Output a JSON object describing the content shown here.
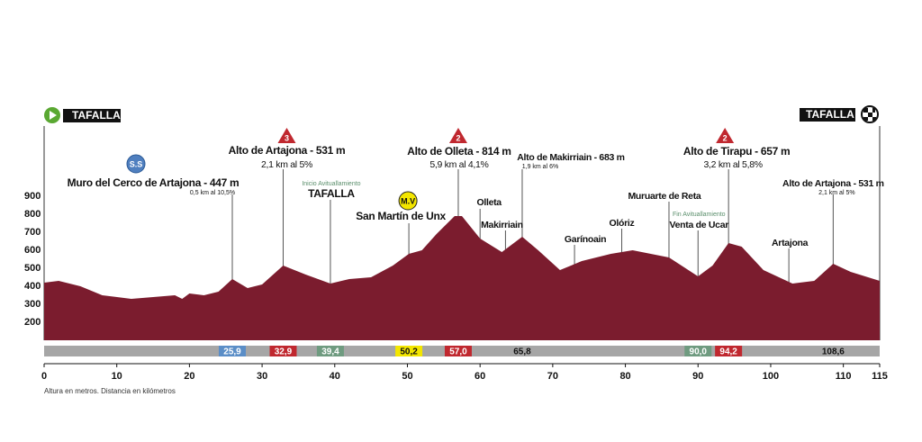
{
  "chart_data": {
    "type": "area",
    "color": "#7b1c2e",
    "xlim": [
      0,
      115
    ],
    "ylim": [
      100,
      900
    ],
    "xticks": [
      0,
      10,
      20,
      30,
      40,
      50,
      60,
      70,
      80,
      90,
      100,
      110,
      115
    ],
    "yticks": [
      200,
      300,
      400,
      500,
      600,
      700,
      800,
      900
    ],
    "x": [
      0,
      2,
      5,
      8,
      12,
      15,
      18,
      19,
      20,
      22,
      24,
      25.9,
      28,
      30,
      32.9,
      36,
      39.4,
      42,
      45,
      48,
      50.2,
      52,
      54,
      56.5,
      57.5,
      60,
      63,
      65.8,
      68,
      71,
      74,
      78,
      81,
      86,
      90,
      92,
      94.2,
      96,
      99,
      103,
      106,
      108.6,
      111,
      115
    ],
    "values": [
      420,
      430,
      400,
      350,
      330,
      340,
      350,
      330,
      360,
      350,
      370,
      440,
      390,
      410,
      515,
      465,
      415,
      440,
      450,
      515,
      580,
      600,
      690,
      790,
      790,
      665,
      590,
      675,
      600,
      490,
      540,
      580,
      600,
      560,
      455,
      515,
      640,
      620,
      490,
      415,
      430,
      525,
      480,
      430
    ],
    "footnote": "Altura en metros. Distancia en kilómetros",
    "start": "TAFALLA",
    "finish": "TAFALLA",
    "annotations": [
      {
        "x": 25.9,
        "badge": "S.S",
        "texts": [
          "Muro del Cerco de Artajona - 447 m",
          "0,5 km al 10,5%"
        ]
      },
      {
        "x": 32.9,
        "badge": "3",
        "texts": [
          "Alto de Artajona - 531 m",
          "2,1 km al 5%"
        ]
      },
      {
        "x": 39.4,
        "texts": [
          "Inicio Avituallamiento",
          "TAFALLA"
        ]
      },
      {
        "x": 50.2,
        "badge": "M.V",
        "texts": [
          "San Martín de Unx"
        ]
      },
      {
        "x": 57,
        "badge": "2",
        "texts": [
          "Alto de Olleta - 814 m",
          "5,9 km al 4,1%"
        ]
      },
      {
        "x": 60,
        "texts": [
          "Olleta"
        ]
      },
      {
        "x": 63.5,
        "texts": [
          "Makirriain"
        ]
      },
      {
        "x": 65.8,
        "texts": [
          "Alto de Makirriain - 683 m",
          "1,9 km al 6%"
        ]
      },
      {
        "x": 73,
        "texts": [
          "Garínoain"
        ]
      },
      {
        "x": 79.5,
        "texts": [
          "Olóriz"
        ]
      },
      {
        "x": 86,
        "texts": [
          "Muruarte de Reta"
        ]
      },
      {
        "x": 90,
        "texts": [
          "Fin Avituallamiento",
          "Venta de Ucar"
        ]
      },
      {
        "x": 94.2,
        "badge": "2",
        "texts": [
          "Alto de Tirapu - 657 m",
          "3,2 km al 5,8%"
        ]
      },
      {
        "x": 102.5,
        "texts": [
          "Artajona"
        ]
      },
      {
        "x": 108.6,
        "texts": [
          "Alto de Artajona - 531 m",
          "2,1 km al 5%"
        ]
      }
    ],
    "points": [
      {
        "km": {
          "value": 25.9,
          "label": "25,9"
        },
        "color": "#5b8ec7"
      },
      {
        "km": {
          "value": 32.9,
          "label": "32,9"
        },
        "color": "#c0282f"
      },
      {
        "km": {
          "value": 39.4,
          "label": "39,4"
        },
        "color": "#6f9b80"
      },
      {
        "km": {
          "value": 50.2,
          "label": "50,2"
        },
        "color": "#f3e600"
      },
      {
        "km": {
          "value": 57,
          "label": "57,0"
        },
        "color": "#c0282f"
      },
      {
        "km": {
          "value": 65.8,
          "label": "65,8"
        }
      },
      {
        "km": {
          "value": 90,
          "label": "90,0"
        },
        "color": "#6f9b80"
      },
      {
        "km": {
          "value": 94.2,
          "label": "94,2"
        },
        "color": "#c0282f"
      },
      {
        "km": {
          "value": 108.6,
          "label": "108,6"
        }
      }
    ]
  }
}
